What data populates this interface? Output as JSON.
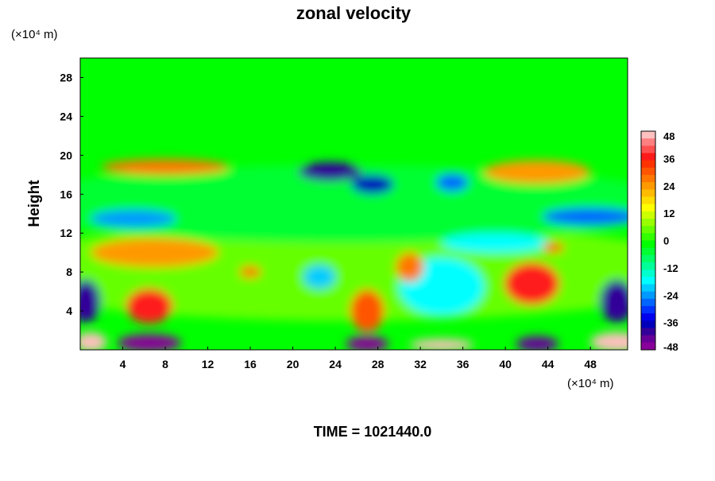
{
  "chart_data": {
    "type": "heatmap",
    "title": "zonal velocity",
    "ylabel": "Height",
    "y_unit": "(×10⁴ m)",
    "x_unit": "(×10⁴ m)",
    "footer": "TIME = 1021440.0",
    "xlim": [
      0,
      51.5
    ],
    "ylim": [
      0,
      30
    ],
    "x_ticks": [
      4,
      8,
      12,
      16,
      20,
      24,
      28,
      32,
      36,
      40,
      44,
      48
    ],
    "y_ticks": [
      4,
      8,
      12,
      16,
      20,
      24,
      28
    ],
    "colorbar": {
      "min": -48,
      "max": 48,
      "step": 4,
      "tick_labels": [
        48,
        36,
        24,
        12,
        0,
        -12,
        -24,
        -36,
        -48
      ],
      "colors": [
        "#ffc0c0",
        "#ff8080",
        "#ff5050",
        "#ff1a1a",
        "#ff3300",
        "#ff5500",
        "#ff7700",
        "#ff9900",
        "#ffbb00",
        "#ffdd00",
        "#ffff00",
        "#ccff00",
        "#99ff00",
        "#66ff00",
        "#33ff00",
        "#00ff00",
        "#00ff33",
        "#00ff66",
        "#00ff99",
        "#00ffcc",
        "#00ffff",
        "#00ccff",
        "#0099ff",
        "#0066ff",
        "#0033ff",
        "#0000ee",
        "#0000bb",
        "#330099",
        "#660099",
        "#880099"
      ]
    },
    "regions": [
      {
        "x": 25,
        "y": 8,
        "rx": 35,
        "ry": 5,
        "value": 4
      },
      {
        "x": 25,
        "y": 15,
        "rx": 32,
        "ry": 4,
        "value": -4
      },
      {
        "x": 8,
        "y": 18.8,
        "rx": 6,
        "ry": 0.8,
        "value": 28
      },
      {
        "x": 43,
        "y": 18.3,
        "rx": 5,
        "ry": 1.2,
        "value": 24
      },
      {
        "x": 23.5,
        "y": 18.3,
        "rx": 3,
        "ry": 1.0,
        "value": -40
      },
      {
        "x": 27.5,
        "y": 17,
        "rx": 2,
        "ry": 1.0,
        "value": -36
      },
      {
        "x": 35,
        "y": 17.2,
        "rx": 1.5,
        "ry": 0.9,
        "value": -28
      },
      {
        "x": 48,
        "y": 13.7,
        "rx": 4.5,
        "ry": 0.9,
        "value": -28
      },
      {
        "x": 5,
        "y": 13.5,
        "rx": 4,
        "ry": 0.9,
        "value": -24
      },
      {
        "x": 7,
        "y": 10,
        "rx": 6,
        "ry": 1.5,
        "value": 24
      },
      {
        "x": 34,
        "y": 6.5,
        "rx": 4,
        "ry": 3,
        "value": -16
      },
      {
        "x": 39,
        "y": 11,
        "rx": 5,
        "ry": 1,
        "value": -16
      },
      {
        "x": 42.5,
        "y": 6.8,
        "rx": 2.6,
        "ry": 2.2,
        "value": 36
      },
      {
        "x": 6.5,
        "y": 4.5,
        "rx": 2.2,
        "ry": 1.8,
        "value": 36
      },
      {
        "x": 27,
        "y": 4,
        "rx": 1.6,
        "ry": 2.2,
        "value": 32
      },
      {
        "x": 31,
        "y": 8.5,
        "rx": 1.3,
        "ry": 1.5,
        "value": 28
      },
      {
        "x": 0.5,
        "y": 5,
        "rx": 1.4,
        "ry": 2.2,
        "value": -40
      },
      {
        "x": 50.5,
        "y": 5,
        "rx": 1.6,
        "ry": 2.2,
        "value": -40
      },
      {
        "x": 22.5,
        "y": 7.5,
        "rx": 1.5,
        "ry": 1.2,
        "value": -20
      },
      {
        "x": 6.5,
        "y": 0.7,
        "rx": 3,
        "ry": 0.9,
        "value": -48
      },
      {
        "x": 27,
        "y": 0.6,
        "rx": 2,
        "ry": 0.8,
        "value": -48
      },
      {
        "x": 43,
        "y": 0.6,
        "rx": 2,
        "ry": 0.8,
        "value": -44
      },
      {
        "x": 1,
        "y": 0.8,
        "rx": 1.5,
        "ry": 1,
        "value": 48
      },
      {
        "x": 34,
        "y": 0.5,
        "rx": 3,
        "ry": 0.6,
        "value": 48
      },
      {
        "x": 50.5,
        "y": 0.8,
        "rx": 2.5,
        "ry": 1,
        "value": 48
      },
      {
        "x": 16,
        "y": 8,
        "rx": 1,
        "ry": 0.6,
        "value": 28
      },
      {
        "x": 44.5,
        "y": 10.5,
        "rx": 1,
        "ry": 0.5,
        "value": 32
      }
    ],
    "grid": false,
    "legend": "right"
  }
}
